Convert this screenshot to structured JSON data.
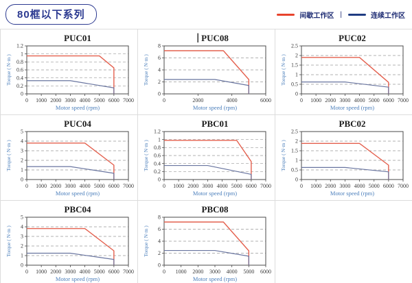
{
  "header": {
    "series_badge": "80框以下系列",
    "legend": {
      "items": [
        {
          "label": "间歇工作区",
          "color": "#E8432C"
        },
        {
          "label": "连续工作区",
          "color": "#1F3C82"
        }
      ],
      "separator": "|"
    }
  },
  "colors": {
    "badge_navy": "#2B3990",
    "legend_red": "#E8432C",
    "legend_blue": "#1F3C82",
    "chart_red": "#E4604E",
    "chart_blue": "#68749F",
    "grid_border": "#DCDCDC",
    "axis_label_blue": "#4A7EBB",
    "tick_text": "#3A3A3A",
    "gridline_gray": "#999999"
  },
  "chart_data": [
    {
      "type": "line",
      "name": "PUC01",
      "xlabel": "Motor speed (rpm)",
      "ylabel": "Torque ( N·m )",
      "xlim": [
        0,
        7000
      ],
      "xticks": [
        0,
        1000,
        2000,
        3000,
        4000,
        5000,
        6000,
        7000
      ],
      "ylim": [
        0,
        1.2
      ],
      "yticks": [
        0,
        0.2,
        0.4,
        0.6,
        0.8,
        1,
        1.2
      ],
      "series": [
        {
          "name": "间歇工作区",
          "key": "intermittent-zone",
          "color": "#E4604E",
          "width": 1.4,
          "points": [
            [
              0,
              0.95
            ],
            [
              5000,
              0.95
            ],
            [
              6000,
              0.65
            ],
            [
              6000,
              0
            ]
          ]
        },
        {
          "name": "连续工作区",
          "key": "continuous-zone",
          "color": "#68749F",
          "width": 1.2,
          "points": [
            [
              0,
              0.33
            ],
            [
              3000,
              0.33
            ],
            [
              6000,
              0.15
            ],
            [
              6000,
              0
            ]
          ]
        }
      ]
    },
    {
      "type": "line",
      "name": "PUC08",
      "title_cursor": true,
      "xlabel": "Motor speed (rpm)",
      "ylabel": "Torque ( N·m )",
      "xlim": [
        0,
        6000
      ],
      "xticks": [
        0,
        2000,
        4000,
        6000
      ],
      "ylim": [
        0,
        8
      ],
      "yticks": [
        0,
        2,
        4,
        6,
        8
      ],
      "series": [
        {
          "name": "间歇工作区",
          "key": "intermittent-zone",
          "color": "#E4604E",
          "width": 1.4,
          "points": [
            [
              0,
              7.2
            ],
            [
              3500,
              7.2
            ],
            [
              5000,
              2.4
            ],
            [
              5000,
              0
            ]
          ]
        },
        {
          "name": "连续工作区",
          "key": "continuous-zone",
          "color": "#68749F",
          "width": 1.2,
          "points": [
            [
              0,
              2.4
            ],
            [
              3000,
              2.4
            ],
            [
              5000,
              1.4
            ],
            [
              5000,
              0
            ]
          ]
        }
      ]
    },
    {
      "type": "line",
      "name": "PUC02",
      "xlabel": "Motor speed (rpm)",
      "ylabel": "Torque ( N·m )",
      "xlim": [
        0,
        7000
      ],
      "xticks": [
        0,
        1000,
        2000,
        3000,
        4000,
        5000,
        6000,
        7000
      ],
      "ylim": [
        0,
        2.5
      ],
      "yticks": [
        0,
        0.5,
        1,
        1.5,
        2,
        2.5
      ],
      "series": [
        {
          "name": "间歇工作区",
          "key": "intermittent-zone",
          "color": "#E4604E",
          "width": 1.4,
          "points": [
            [
              0,
              1.9
            ],
            [
              4000,
              1.9
            ],
            [
              6000,
              0.6
            ],
            [
              6000,
              0
            ]
          ]
        },
        {
          "name": "连续工作区",
          "key": "continuous-zone",
          "color": "#68749F",
          "width": 1.2,
          "points": [
            [
              0,
              0.62
            ],
            [
              3000,
              0.62
            ],
            [
              6000,
              0.35
            ],
            [
              6000,
              0
            ]
          ]
        }
      ]
    },
    {
      "type": "line",
      "name": "PUC04",
      "xlabel": "Motor speed (rpm)",
      "ylabel": "Torque ( N·m )",
      "xlim": [
        0,
        7000
      ],
      "xticks": [
        0,
        1000,
        2000,
        3000,
        4000,
        5000,
        6000,
        7000
      ],
      "ylim": [
        0,
        5
      ],
      "yticks": [
        0,
        1,
        2,
        3,
        4,
        5
      ],
      "series": [
        {
          "name": "间歇工作区",
          "key": "intermittent-zone",
          "color": "#E4604E",
          "width": 1.4,
          "points": [
            [
              0,
              3.8
            ],
            [
              4000,
              3.8
            ],
            [
              6000,
              1.5
            ],
            [
              6000,
              0
            ]
          ]
        },
        {
          "name": "连续工作区",
          "key": "continuous-zone",
          "color": "#68749F",
          "width": 1.2,
          "points": [
            [
              0,
              1.35
            ],
            [
              3000,
              1.35
            ],
            [
              6000,
              0.65
            ],
            [
              6000,
              0
            ]
          ]
        }
      ]
    },
    {
      "type": "line",
      "name": "PBC01",
      "xlabel": "Motor speed (rpm)",
      "ylabel": "Torque ( N·m )",
      "xlim": [
        0,
        7000
      ],
      "xticks": [
        0,
        1000,
        2000,
        3000,
        4000,
        5000,
        6000,
        7000
      ],
      "ylim": [
        0,
        1.2
      ],
      "yticks": [
        0,
        0.2,
        0.4,
        0.6,
        0.8,
        1,
        1.2
      ],
      "series": [
        {
          "name": "间歇工作区",
          "key": "intermittent-zone",
          "color": "#E4604E",
          "width": 1.4,
          "points": [
            [
              0,
              0.98
            ],
            [
              5000,
              0.98
            ],
            [
              6000,
              0.45
            ],
            [
              6000,
              0
            ]
          ]
        },
        {
          "name": "连续工作区",
          "key": "continuous-zone",
          "color": "#68749F",
          "width": 1.2,
          "points": [
            [
              0,
              0.35
            ],
            [
              3000,
              0.35
            ],
            [
              6000,
              0.13
            ],
            [
              6000,
              0
            ]
          ]
        }
      ]
    },
    {
      "type": "line",
      "name": "PBC02",
      "xlabel": "Motor speed (rpm)",
      "ylabel": "Torque ( N·m )",
      "xlim": [
        0,
        7000
      ],
      "xticks": [
        0,
        1000,
        2000,
        3000,
        4000,
        5000,
        6000,
        7000
      ],
      "ylim": [
        0,
        2.5
      ],
      "yticks": [
        0,
        0.5,
        1,
        1.5,
        2,
        2.5
      ],
      "series": [
        {
          "name": "间歇工作区",
          "key": "intermittent-zone",
          "color": "#E4604E",
          "width": 1.4,
          "points": [
            [
              0,
              1.88
            ],
            [
              4000,
              1.88
            ],
            [
              6000,
              0.75
            ],
            [
              6000,
              0
            ]
          ]
        },
        {
          "name": "连续工作区",
          "key": "continuous-zone",
          "color": "#68749F",
          "width": 1.2,
          "points": [
            [
              0,
              0.63
            ],
            [
              3000,
              0.63
            ],
            [
              6000,
              0.4
            ],
            [
              6000,
              0
            ]
          ]
        }
      ]
    },
    {
      "type": "line",
      "name": "PBC04",
      "xlabel": "Motor speed (rpm)",
      "ylabel": "Torque ( N·m )",
      "xlim": [
        0,
        7000
      ],
      "xticks": [
        0,
        1000,
        2000,
        3000,
        4000,
        5000,
        6000,
        7000
      ],
      "ylim": [
        0,
        5
      ],
      "yticks": [
        0,
        1,
        2,
        3,
        4,
        5
      ],
      "series": [
        {
          "name": "间歇工作区",
          "key": "intermittent-zone",
          "color": "#E4604E",
          "width": 1.4,
          "points": [
            [
              0,
              3.82
            ],
            [
              4000,
              3.82
            ],
            [
              6000,
              1.5
            ],
            [
              6000,
              0
            ]
          ]
        },
        {
          "name": "连续工作区",
          "key": "continuous-zone",
          "color": "#68749F",
          "width": 1.2,
          "points": [
            [
              0,
              1.25
            ],
            [
              3000,
              1.25
            ],
            [
              6000,
              0.6
            ],
            [
              6000,
              0
            ]
          ]
        }
      ]
    },
    {
      "type": "line",
      "name": "PBC08",
      "xlabel": "Motor speed (rpm)",
      "ylabel": "Torque ( N·m )",
      "xlim": [
        0,
        6000
      ],
      "xticks": [
        0,
        1000,
        2000,
        3000,
        4000,
        5000,
        6000
      ],
      "ylim": [
        0,
        8
      ],
      "yticks": [
        0,
        2,
        4,
        6,
        8
      ],
      "series": [
        {
          "name": "间歇工作区",
          "key": "intermittent-zone",
          "color": "#E4604E",
          "width": 1.4,
          "points": [
            [
              0,
              7.2
            ],
            [
              3500,
              7.2
            ],
            [
              5000,
              2.4
            ],
            [
              5000,
              0
            ]
          ]
        },
        {
          "name": "连续工作区",
          "key": "continuous-zone",
          "color": "#68749F",
          "width": 1.2,
          "points": [
            [
              0,
              2.45
            ],
            [
              3000,
              2.45
            ],
            [
              5000,
              1.5
            ],
            [
              5000,
              0
            ]
          ]
        }
      ]
    }
  ]
}
